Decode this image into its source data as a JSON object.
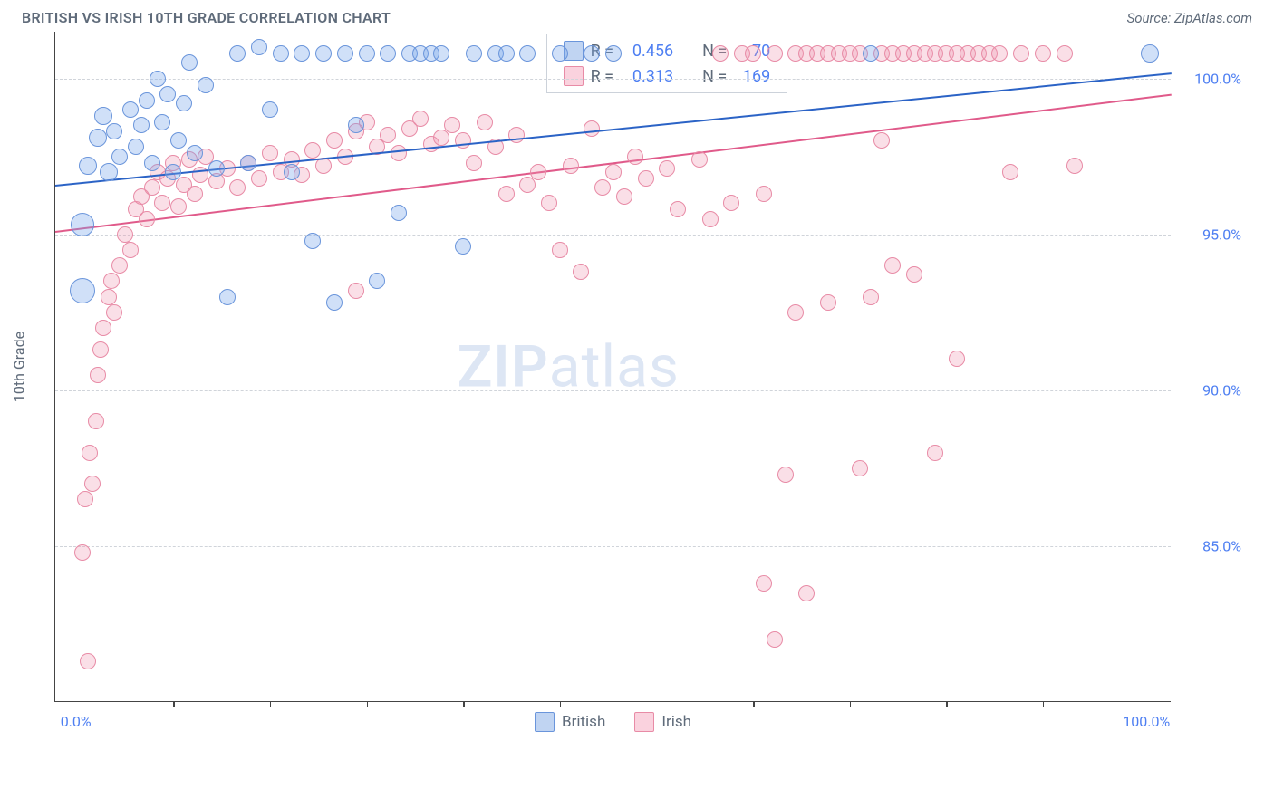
{
  "title": "BRITISH VS IRISH 10TH GRADE CORRELATION CHART",
  "source": "Source: ZipAtlas.com",
  "watermark_bold": "ZIP",
  "watermark_light": "atlas",
  "ylabel": "10th Grade",
  "chart": {
    "type": "scatter",
    "background_color": "#ffffff",
    "grid_color": "#d0d4da",
    "axis_color": "#444444",
    "title_color": "#5f6b7a",
    "tick_label_color": "#4e7ff2",
    "tick_fontsize": 16,
    "title_fontsize": 16,
    "xlim": [
      -2,
      102
    ],
    "ylim": [
      80,
      101.5
    ],
    "y_ticks": [
      85.0,
      90.0,
      95.0,
      100.0
    ],
    "y_tick_labels": [
      "85.0%",
      "90.0%",
      "95.0%",
      "100.0%"
    ],
    "x_end_labels": {
      "min": "0.0%",
      "max": "100.0%"
    },
    "x_minor_ticks_pct": [
      9,
      18,
      27,
      36,
      45,
      63,
      72,
      81,
      90
    ],
    "series": [
      {
        "name": "British",
        "label": "British",
        "marker_fill": "rgba(120,165,235,0.35)",
        "marker_stroke": "#6a95db",
        "line_color": "#2b63c6",
        "swatch_fill": "#c0d4f2",
        "swatch_stroke": "#6a95db",
        "R": "0.456",
        "N": "70",
        "trend": {
          "x0": -2,
          "y0": 96.6,
          "x1": 102,
          "y1": 100.2
        },
        "points": [
          {
            "x": 0.5,
            "y": 95.3,
            "r": 13
          },
          {
            "x": 0.5,
            "y": 93.2,
            "r": 14
          },
          {
            "x": 1.0,
            "y": 97.2,
            "r": 10
          },
          {
            "x": 2.0,
            "y": 98.1,
            "r": 10
          },
          {
            "x": 2.5,
            "y": 98.8,
            "r": 10
          },
          {
            "x": 3.0,
            "y": 97.0,
            "r": 10
          },
          {
            "x": 3.5,
            "y": 98.3,
            "r": 9
          },
          {
            "x": 4.0,
            "y": 97.5,
            "r": 9
          },
          {
            "x": 5.0,
            "y": 99.0,
            "r": 9
          },
          {
            "x": 5.5,
            "y": 97.8,
            "r": 9
          },
          {
            "x": 6.0,
            "y": 98.5,
            "r": 9
          },
          {
            "x": 6.5,
            "y": 99.3,
            "r": 9
          },
          {
            "x": 7.0,
            "y": 97.3,
            "r": 9
          },
          {
            "x": 7.5,
            "y": 100.0,
            "r": 9
          },
          {
            "x": 8.0,
            "y": 98.6,
            "r": 9
          },
          {
            "x": 8.5,
            "y": 99.5,
            "r": 9
          },
          {
            "x": 9.0,
            "y": 97.0,
            "r": 9
          },
          {
            "x": 9.5,
            "y": 98.0,
            "r": 9
          },
          {
            "x": 10.0,
            "y": 99.2,
            "r": 9
          },
          {
            "x": 10.5,
            "y": 100.5,
            "r": 9
          },
          {
            "x": 11.0,
            "y": 97.6,
            "r": 9
          },
          {
            "x": 12.0,
            "y": 99.8,
            "r": 9
          },
          {
            "x": 13.0,
            "y": 97.1,
            "r": 9
          },
          {
            "x": 14.0,
            "y": 93.0,
            "r": 9
          },
          {
            "x": 15.0,
            "y": 100.8,
            "r": 9
          },
          {
            "x": 16.0,
            "y": 97.3,
            "r": 9
          },
          {
            "x": 17.0,
            "y": 101.0,
            "r": 9
          },
          {
            "x": 18.0,
            "y": 99.0,
            "r": 9
          },
          {
            "x": 19.0,
            "y": 100.8,
            "r": 9
          },
          {
            "x": 20.0,
            "y": 97.0,
            "r": 9
          },
          {
            "x": 21.0,
            "y": 100.8,
            "r": 9
          },
          {
            "x": 22.0,
            "y": 94.8,
            "r": 9
          },
          {
            "x": 23.0,
            "y": 100.8,
            "r": 9
          },
          {
            "x": 24.0,
            "y": 92.8,
            "r": 9
          },
          {
            "x": 25.0,
            "y": 100.8,
            "r": 9
          },
          {
            "x": 26.0,
            "y": 98.5,
            "r": 9
          },
          {
            "x": 27.0,
            "y": 100.8,
            "r": 9
          },
          {
            "x": 28.0,
            "y": 93.5,
            "r": 9
          },
          {
            "x": 29.0,
            "y": 100.8,
            "r": 9
          },
          {
            "x": 30.0,
            "y": 95.7,
            "r": 9
          },
          {
            "x": 31.0,
            "y": 100.8,
            "r": 9
          },
          {
            "x": 32.0,
            "y": 100.8,
            "r": 9
          },
          {
            "x": 33.0,
            "y": 100.8,
            "r": 9
          },
          {
            "x": 34.0,
            "y": 100.8,
            "r": 9
          },
          {
            "x": 36.0,
            "y": 94.6,
            "r": 9
          },
          {
            "x": 37.0,
            "y": 100.8,
            "r": 9
          },
          {
            "x": 39.0,
            "y": 100.8,
            "r": 9
          },
          {
            "x": 40.0,
            "y": 100.8,
            "r": 9
          },
          {
            "x": 42.0,
            "y": 100.8,
            "r": 9
          },
          {
            "x": 45.0,
            "y": 100.8,
            "r": 9
          },
          {
            "x": 48.0,
            "y": 100.8,
            "r": 9
          },
          {
            "x": 50.0,
            "y": 100.8,
            "r": 9
          },
          {
            "x": 74.0,
            "y": 100.8,
            "r": 9
          },
          {
            "x": 100.0,
            "y": 100.8,
            "r": 10
          }
        ]
      },
      {
        "name": "Irish",
        "label": "Irish",
        "marker_fill": "rgba(240,150,175,0.30)",
        "marker_stroke": "#e88ba6",
        "line_color": "#e05a8a",
        "swatch_fill": "#fad2de",
        "swatch_stroke": "#e88ba6",
        "R": "0.313",
        "N": "169",
        "trend": {
          "x0": -2,
          "y0": 95.1,
          "x1": 102,
          "y1": 99.5
        },
        "points": [
          {
            "x": 0.5,
            "y": 84.8,
            "r": 9
          },
          {
            "x": 0.8,
            "y": 86.5,
            "r": 9
          },
          {
            "x": 1.0,
            "y": 81.3,
            "r": 9
          },
          {
            "x": 1.2,
            "y": 88.0,
            "r": 9
          },
          {
            "x": 1.5,
            "y": 87.0,
            "r": 9
          },
          {
            "x": 1.8,
            "y": 89.0,
            "r": 9
          },
          {
            "x": 2.0,
            "y": 90.5,
            "r": 9
          },
          {
            "x": 2.2,
            "y": 91.3,
            "r": 9
          },
          {
            "x": 2.5,
            "y": 92.0,
            "r": 9
          },
          {
            "x": 3.0,
            "y": 93.0,
            "r": 9
          },
          {
            "x": 3.2,
            "y": 93.5,
            "r": 9
          },
          {
            "x": 3.5,
            "y": 92.5,
            "r": 9
          },
          {
            "x": 4.0,
            "y": 94.0,
            "r": 9
          },
          {
            "x": 4.5,
            "y": 95.0,
            "r": 9
          },
          {
            "x": 5.0,
            "y": 94.5,
            "r": 9
          },
          {
            "x": 5.5,
            "y": 95.8,
            "r": 9
          },
          {
            "x": 6.0,
            "y": 96.2,
            "r": 9
          },
          {
            "x": 6.5,
            "y": 95.5,
            "r": 9
          },
          {
            "x": 7.0,
            "y": 96.5,
            "r": 9
          },
          {
            "x": 7.5,
            "y": 97.0,
            "r": 9
          },
          {
            "x": 8.0,
            "y": 96.0,
            "r": 9
          },
          {
            "x": 8.5,
            "y": 96.8,
            "r": 9
          },
          {
            "x": 9.0,
            "y": 97.3,
            "r": 9
          },
          {
            "x": 9.5,
            "y": 95.9,
            "r": 9
          },
          {
            "x": 10.0,
            "y": 96.6,
            "r": 9
          },
          {
            "x": 10.5,
            "y": 97.4,
            "r": 9
          },
          {
            "x": 11.0,
            "y": 96.3,
            "r": 9
          },
          {
            "x": 11.5,
            "y": 96.9,
            "r": 9
          },
          {
            "x": 12.0,
            "y": 97.5,
            "r": 9
          },
          {
            "x": 13.0,
            "y": 96.7,
            "r": 9
          },
          {
            "x": 14.0,
            "y": 97.1,
            "r": 9
          },
          {
            "x": 15.0,
            "y": 96.5,
            "r": 9
          },
          {
            "x": 16.0,
            "y": 97.3,
            "r": 9
          },
          {
            "x": 17.0,
            "y": 96.8,
            "r": 9
          },
          {
            "x": 18.0,
            "y": 97.6,
            "r": 9
          },
          {
            "x": 19.0,
            "y": 97.0,
            "r": 9
          },
          {
            "x": 20.0,
            "y": 97.4,
            "r": 9
          },
          {
            "x": 21.0,
            "y": 96.9,
            "r": 9
          },
          {
            "x": 22.0,
            "y": 97.7,
            "r": 9
          },
          {
            "x": 23.0,
            "y": 97.2,
            "r": 9
          },
          {
            "x": 24.0,
            "y": 98.0,
            "r": 9
          },
          {
            "x": 25.0,
            "y": 97.5,
            "r": 9
          },
          {
            "x": 26.0,
            "y": 98.3,
            "r": 9
          },
          {
            "x": 26.0,
            "y": 93.2,
            "r": 9
          },
          {
            "x": 27.0,
            "y": 98.6,
            "r": 9
          },
          {
            "x": 28.0,
            "y": 97.8,
            "r": 9
          },
          {
            "x": 29.0,
            "y": 98.2,
            "r": 9
          },
          {
            "x": 30.0,
            "y": 97.6,
            "r": 9
          },
          {
            "x": 31.0,
            "y": 98.4,
            "r": 9
          },
          {
            "x": 32.0,
            "y": 98.7,
            "r": 9
          },
          {
            "x": 33.0,
            "y": 97.9,
            "r": 9
          },
          {
            "x": 34.0,
            "y": 98.1,
            "r": 9
          },
          {
            "x": 35.0,
            "y": 98.5,
            "r": 9
          },
          {
            "x": 36.0,
            "y": 98.0,
            "r": 9
          },
          {
            "x": 37.0,
            "y": 97.3,
            "r": 9
          },
          {
            "x": 38.0,
            "y": 98.6,
            "r": 9
          },
          {
            "x": 39.0,
            "y": 97.8,
            "r": 9
          },
          {
            "x": 40.0,
            "y": 96.3,
            "r": 9
          },
          {
            "x": 41.0,
            "y": 98.2,
            "r": 9
          },
          {
            "x": 42.0,
            "y": 96.6,
            "r": 9
          },
          {
            "x": 43.0,
            "y": 97.0,
            "r": 9
          },
          {
            "x": 44.0,
            "y": 96.0,
            "r": 9
          },
          {
            "x": 45.0,
            "y": 94.5,
            "r": 9
          },
          {
            "x": 46.0,
            "y": 97.2,
            "r": 9
          },
          {
            "x": 47.0,
            "y": 93.8,
            "r": 9
          },
          {
            "x": 48.0,
            "y": 98.4,
            "r": 9
          },
          {
            "x": 49.0,
            "y": 96.5,
            "r": 9
          },
          {
            "x": 50.0,
            "y": 97.0,
            "r": 9
          },
          {
            "x": 51.0,
            "y": 96.2,
            "r": 9
          },
          {
            "x": 52.0,
            "y": 97.5,
            "r": 9
          },
          {
            "x": 53.0,
            "y": 96.8,
            "r": 9
          },
          {
            "x": 55.0,
            "y": 97.1,
            "r": 9
          },
          {
            "x": 56.0,
            "y": 95.8,
            "r": 9
          },
          {
            "x": 58.0,
            "y": 97.4,
            "r": 9
          },
          {
            "x": 59.0,
            "y": 95.5,
            "r": 9
          },
          {
            "x": 60.0,
            "y": 100.8,
            "r": 9
          },
          {
            "x": 61.0,
            "y": 96.0,
            "r": 9
          },
          {
            "x": 62.0,
            "y": 100.8,
            "r": 9
          },
          {
            "x": 63.0,
            "y": 100.8,
            "r": 9
          },
          {
            "x": 64.0,
            "y": 96.3,
            "r": 9
          },
          {
            "x": 64.0,
            "y": 83.8,
            "r": 9
          },
          {
            "x": 65.0,
            "y": 100.8,
            "r": 9
          },
          {
            "x": 65.0,
            "y": 82.0,
            "r": 9
          },
          {
            "x": 66.0,
            "y": 87.3,
            "r": 9
          },
          {
            "x": 67.0,
            "y": 100.8,
            "r": 9
          },
          {
            "x": 67.0,
            "y": 92.5,
            "r": 9
          },
          {
            "x": 68.0,
            "y": 100.8,
            "r": 9
          },
          {
            "x": 68.0,
            "y": 83.5,
            "r": 9
          },
          {
            "x": 69.0,
            "y": 100.8,
            "r": 9
          },
          {
            "x": 70.0,
            "y": 100.8,
            "r": 9
          },
          {
            "x": 70.0,
            "y": 92.8,
            "r": 9
          },
          {
            "x": 71.0,
            "y": 100.8,
            "r": 9
          },
          {
            "x": 72.0,
            "y": 100.8,
            "r": 9
          },
          {
            "x": 73.0,
            "y": 100.8,
            "r": 9
          },
          {
            "x": 73.0,
            "y": 87.5,
            "r": 9
          },
          {
            "x": 74.0,
            "y": 93.0,
            "r": 9
          },
          {
            "x": 75.0,
            "y": 98.0,
            "r": 9
          },
          {
            "x": 75.0,
            "y": 100.8,
            "r": 9
          },
          {
            "x": 76.0,
            "y": 100.8,
            "r": 9
          },
          {
            "x": 76.0,
            "y": 94.0,
            "r": 9
          },
          {
            "x": 77.0,
            "y": 100.8,
            "r": 9
          },
          {
            "x": 78.0,
            "y": 100.8,
            "r": 9
          },
          {
            "x": 78.0,
            "y": 93.7,
            "r": 9
          },
          {
            "x": 79.0,
            "y": 100.8,
            "r": 9
          },
          {
            "x": 80.0,
            "y": 100.8,
            "r": 9
          },
          {
            "x": 80.0,
            "y": 88.0,
            "r": 9
          },
          {
            "x": 81.0,
            "y": 100.8,
            "r": 9
          },
          {
            "x": 82.0,
            "y": 91.0,
            "r": 9
          },
          {
            "x": 82.0,
            "y": 100.8,
            "r": 9
          },
          {
            "x": 83.0,
            "y": 100.8,
            "r": 9
          },
          {
            "x": 84.0,
            "y": 100.8,
            "r": 9
          },
          {
            "x": 85.0,
            "y": 100.8,
            "r": 9
          },
          {
            "x": 86.0,
            "y": 100.8,
            "r": 9
          },
          {
            "x": 87.0,
            "y": 97.0,
            "r": 9
          },
          {
            "x": 88.0,
            "y": 100.8,
            "r": 9
          },
          {
            "x": 90.0,
            "y": 100.8,
            "r": 9
          },
          {
            "x": 92.0,
            "y": 100.8,
            "r": 9
          },
          {
            "x": 93.0,
            "y": 97.2,
            "r": 9
          }
        ]
      }
    ],
    "legend_top": {
      "R_label": "R =",
      "N_label": "N ="
    },
    "legend_bottom_labels": [
      "British",
      "Irish"
    ]
  }
}
